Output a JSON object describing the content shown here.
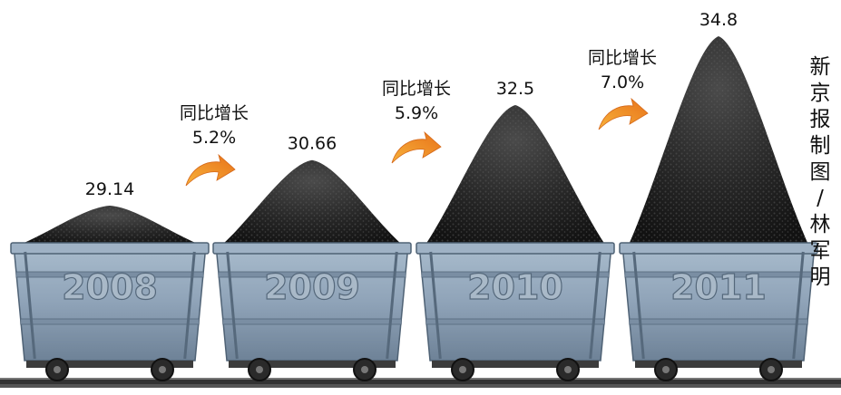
{
  "chart_data": {
    "type": "bar",
    "categories": [
      "2008",
      "2009",
      "2010",
      "2011"
    ],
    "values": [
      29.14,
      30.66,
      32.5,
      34.8
    ],
    "value_labels": [
      "29.14",
      "30.66",
      "32.5",
      "34.8"
    ],
    "growth": [
      {
        "label": "同比增长",
        "value": "5.2%"
      },
      {
        "label": "同比增长",
        "value": "5.9%"
      },
      {
        "label": "同比增长",
        "value": "7.0%"
      }
    ],
    "title": "",
    "xlabel": "",
    "ylabel": ""
  },
  "credit": "新京报制图/林军明",
  "colors": {
    "cart": "#8ea2b6",
    "cart_dark": "#5c6f82",
    "coal": "#222222",
    "arrow": "#f39a1e",
    "rail": "#2f2f2f"
  }
}
